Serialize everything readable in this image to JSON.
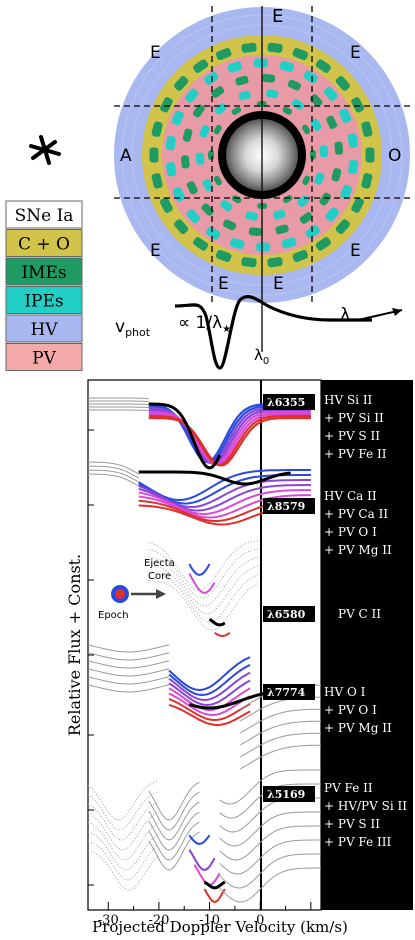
{
  "legend": {
    "items": [
      {
        "label": "SNe Ia",
        "color": "#ffffff"
      },
      {
        "label": "C + O",
        "color": "#d2c44a"
      },
      {
        "label": "IMEs",
        "color": "#1f9a63"
      },
      {
        "label": "IPEs",
        "color": "#22cfc7"
      },
      {
        "label": "HV",
        "color": "#a9b8f0"
      },
      {
        "label": "PV",
        "color": "#f4a9a9"
      }
    ]
  },
  "diagram": {
    "letters": {
      "top": "E",
      "left": "A",
      "right": "O",
      "ul": "E",
      "ur": "E",
      "ll": "E",
      "lr": "E",
      "bl": "E",
      "br": "E"
    },
    "vphot_label": "v",
    "vphot_sub": "phot",
    "propto": "∝ 1/λ",
    "propto_sub": "★",
    "lambda_arrow_label": "λ",
    "lambda0": "λ",
    "lambda0_sub": "0",
    "colors": {
      "hv": "#a9b8f0",
      "pv": "#e89aa6",
      "imes": "#1f9a63",
      "ipes": "#22cfc7",
      "co": "#d2c44a"
    }
  },
  "plot": {
    "ylabel": "Relative Flux + Const.",
    "xlabel": "Projected Doppler Velocity (km/s)",
    "xticks": [
      "-30",
      "-20",
      "-10",
      "0"
    ],
    "xlim": [
      -34,
      12
    ],
    "inset": {
      "ejecta": "Ejecta",
      "core": "Core",
      "epoch": "Epoch"
    },
    "lines": [
      {
        "tag": "λ6355",
        "notes": [
          "HV Si II",
          "+ PV Si II",
          "+ PV S II",
          "+ PV Fe II"
        ]
      },
      {
        "tag": "λ8579",
        "notes": [
          "HV Ca II",
          "+ PV Ca II",
          "+ PV O I",
          "+ PV Mg II"
        ]
      },
      {
        "tag": "λ6580",
        "notes": [
          "PV C II"
        ]
      },
      {
        "tag": "λ7774",
        "notes": [
          "HV O I",
          "+ PV O I",
          "+ PV Mg II"
        ]
      },
      {
        "tag": "λ5169",
        "notes": [
          "PV Fe II",
          "+ HV/PV Si II",
          "+ PV S II",
          "+ PV Fe III"
        ]
      }
    ]
  },
  "colors": {
    "black": "#000000",
    "blue": "#2a49e0",
    "violet": "#8a44d8",
    "magenta": "#d94ad9",
    "red": "#e0302a",
    "grey": "#9a9a9a"
  }
}
